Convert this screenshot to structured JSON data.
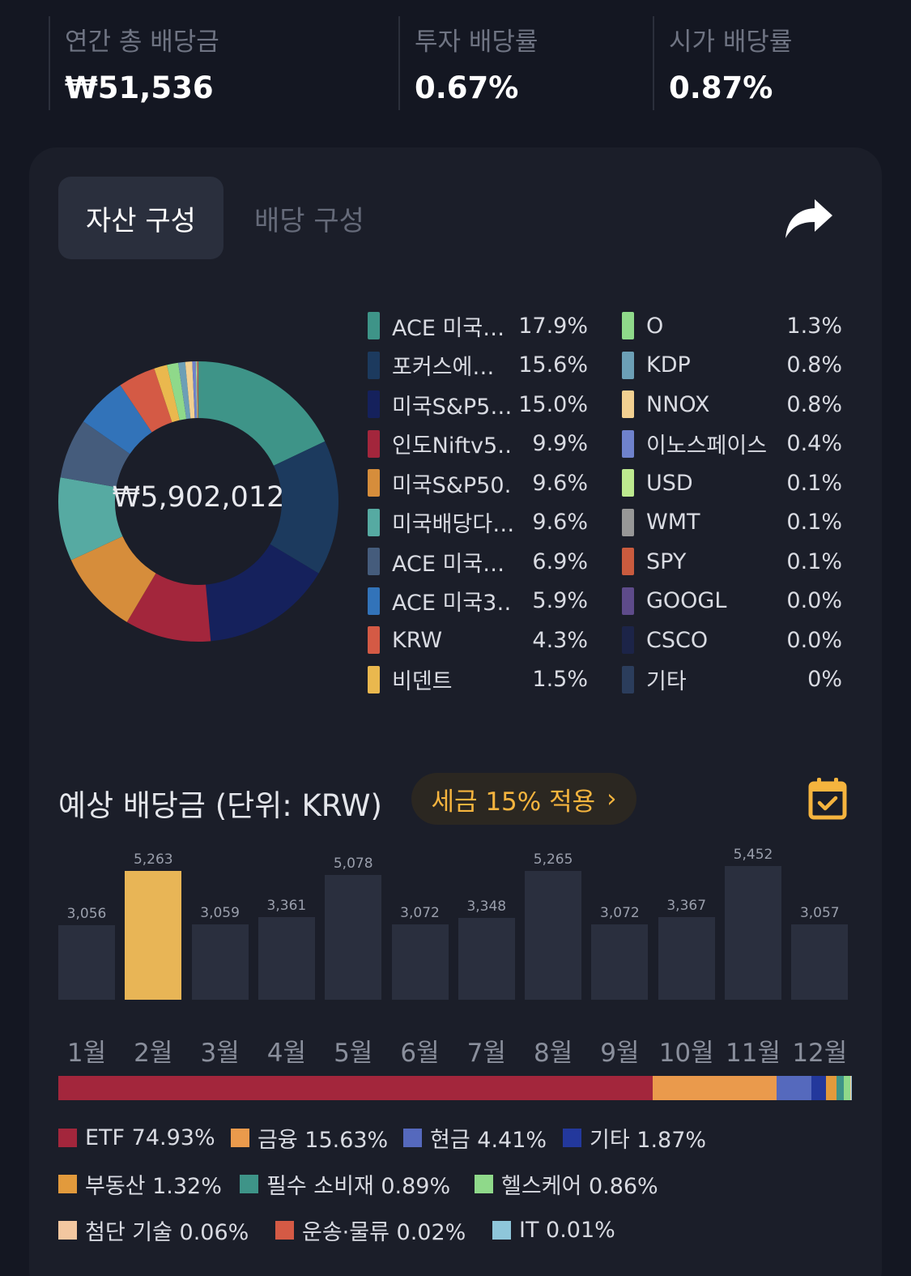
{
  "summary": {
    "annual_dividend_label": "연간 총 배당금",
    "annual_dividend_value": "₩51,536",
    "invest_yield_label": "투자 배당률",
    "invest_yield_value": "0.67%",
    "market_yield_label": "시가 배당률",
    "market_yield_value": "0.87%"
  },
  "tabs": {
    "asset": "자산 구성",
    "dividend": "배당 구성"
  },
  "icons": {
    "share": "share-arrow-icon",
    "calendar": "calendar-check-icon"
  },
  "donut": {
    "total": "₩5,902,012"
  },
  "holdings": [
    {
      "name": "ACE 미국…",
      "pct": "17.9%",
      "value": 17.9,
      "color": "#3e9488"
    },
    {
      "name": "포커스에…",
      "pct": "15.6%",
      "value": 15.6,
      "color": "#1c3a5e"
    },
    {
      "name": "미국S&P5…",
      "pct": "15.0%",
      "value": 15.0,
      "color": "#15215c"
    },
    {
      "name": "인도Niftv5…",
      "pct": "9.9%",
      "value": 9.9,
      "color": "#a3263c"
    },
    {
      "name": "미국S&P50…",
      "pct": "9.6%",
      "value": 9.6,
      "color": "#d68d3b"
    },
    {
      "name": "미국배당다…",
      "pct": "9.6%",
      "value": 9.6,
      "color": "#56aaa2"
    },
    {
      "name": "ACE 미국…",
      "pct": "6.9%",
      "value": 6.9,
      "color": "#455c7c"
    },
    {
      "name": "ACE 미국3…",
      "pct": "5.9%",
      "value": 5.9,
      "color": "#3273b9"
    },
    {
      "name": "KRW",
      "pct": "4.3%",
      "value": 4.3,
      "color": "#d45a45"
    },
    {
      "name": "비덴트",
      "pct": "1.5%",
      "value": 1.5,
      "color": "#eab84e"
    },
    {
      "name": "O",
      "pct": "1.3%",
      "value": 1.3,
      "color": "#8fd98a"
    },
    {
      "name": "KDP",
      "pct": "0.8%",
      "value": 0.8,
      "color": "#6c9fb6"
    },
    {
      "name": "NNOX",
      "pct": "0.8%",
      "value": 0.8,
      "color": "#f2d091"
    },
    {
      "name": "이노스페이스",
      "pct": "0.4%",
      "value": 0.4,
      "color": "#6f82cc"
    },
    {
      "name": "USD",
      "pct": "0.1%",
      "value": 0.1,
      "color": "#bde98f"
    },
    {
      "name": "WMT",
      "pct": "0.1%",
      "value": 0.1,
      "color": "#979797"
    },
    {
      "name": "SPY",
      "pct": "0.1%",
      "value": 0.1,
      "color": "#c95b3e"
    },
    {
      "name": "GOOGL",
      "pct": "0.0%",
      "value": 0.0,
      "color": "#5e4b8a"
    },
    {
      "name": "CSCO",
      "pct": "0.0%",
      "value": 0.0,
      "color": "#1c2448"
    },
    {
      "name": "기타",
      "pct": "0%",
      "value": 0,
      "color": "#2b3d5c"
    }
  ],
  "forecast": {
    "title": "예상 배당금 (단위: KRW)",
    "tax_label": "세금 15% 적용",
    "tax_chevron": "›"
  },
  "chart_data": {
    "type": "bar",
    "categories": [
      "1월",
      "2월",
      "3월",
      "4월",
      "5월",
      "6월",
      "7월",
      "8월",
      "9월",
      "10월",
      "11월",
      "12월"
    ],
    "values": [
      3056,
      5263,
      3059,
      3361,
      5078,
      3072,
      3348,
      5265,
      3072,
      3367,
      5452,
      3057
    ],
    "value_labels": [
      "3,056",
      "5,263",
      "3,059",
      "3,361",
      "5,078",
      "3,072",
      "3,348",
      "5,265",
      "3,072",
      "3,367",
      "5,452",
      "3,057"
    ],
    "highlight_index": 1,
    "highlight_color": "#e8b556",
    "bar_color": "#2a2f3e"
  },
  "sectors": [
    {
      "name": "ETF 74.93%",
      "value": 74.93,
      "color": "#a3263c"
    },
    {
      "name": "금융 15.63%",
      "value": 15.63,
      "color": "#ea9a4c"
    },
    {
      "name": "현금 4.41%",
      "value": 4.41,
      "color": "#5569bd"
    },
    {
      "name": "기타 1.87%",
      "value": 1.87,
      "color": "#23389c"
    },
    {
      "name": "부동산 1.32%",
      "value": 1.32,
      "color": "#e29a3c"
    },
    {
      "name": "필수 소비재 0.89%",
      "value": 0.89,
      "color": "#3e9488"
    },
    {
      "name": "헬스케어 0.86%",
      "value": 0.86,
      "color": "#8fd98a"
    },
    {
      "name": "첨단 기술 0.06%",
      "value": 0.06,
      "color": "#f3c7a0"
    },
    {
      "name": "운송·물류 0.02%",
      "value": 0.02,
      "color": "#d45a45"
    },
    {
      "name": "IT 0.01%",
      "value": 0.01,
      "color": "#8ec6da"
    }
  ]
}
